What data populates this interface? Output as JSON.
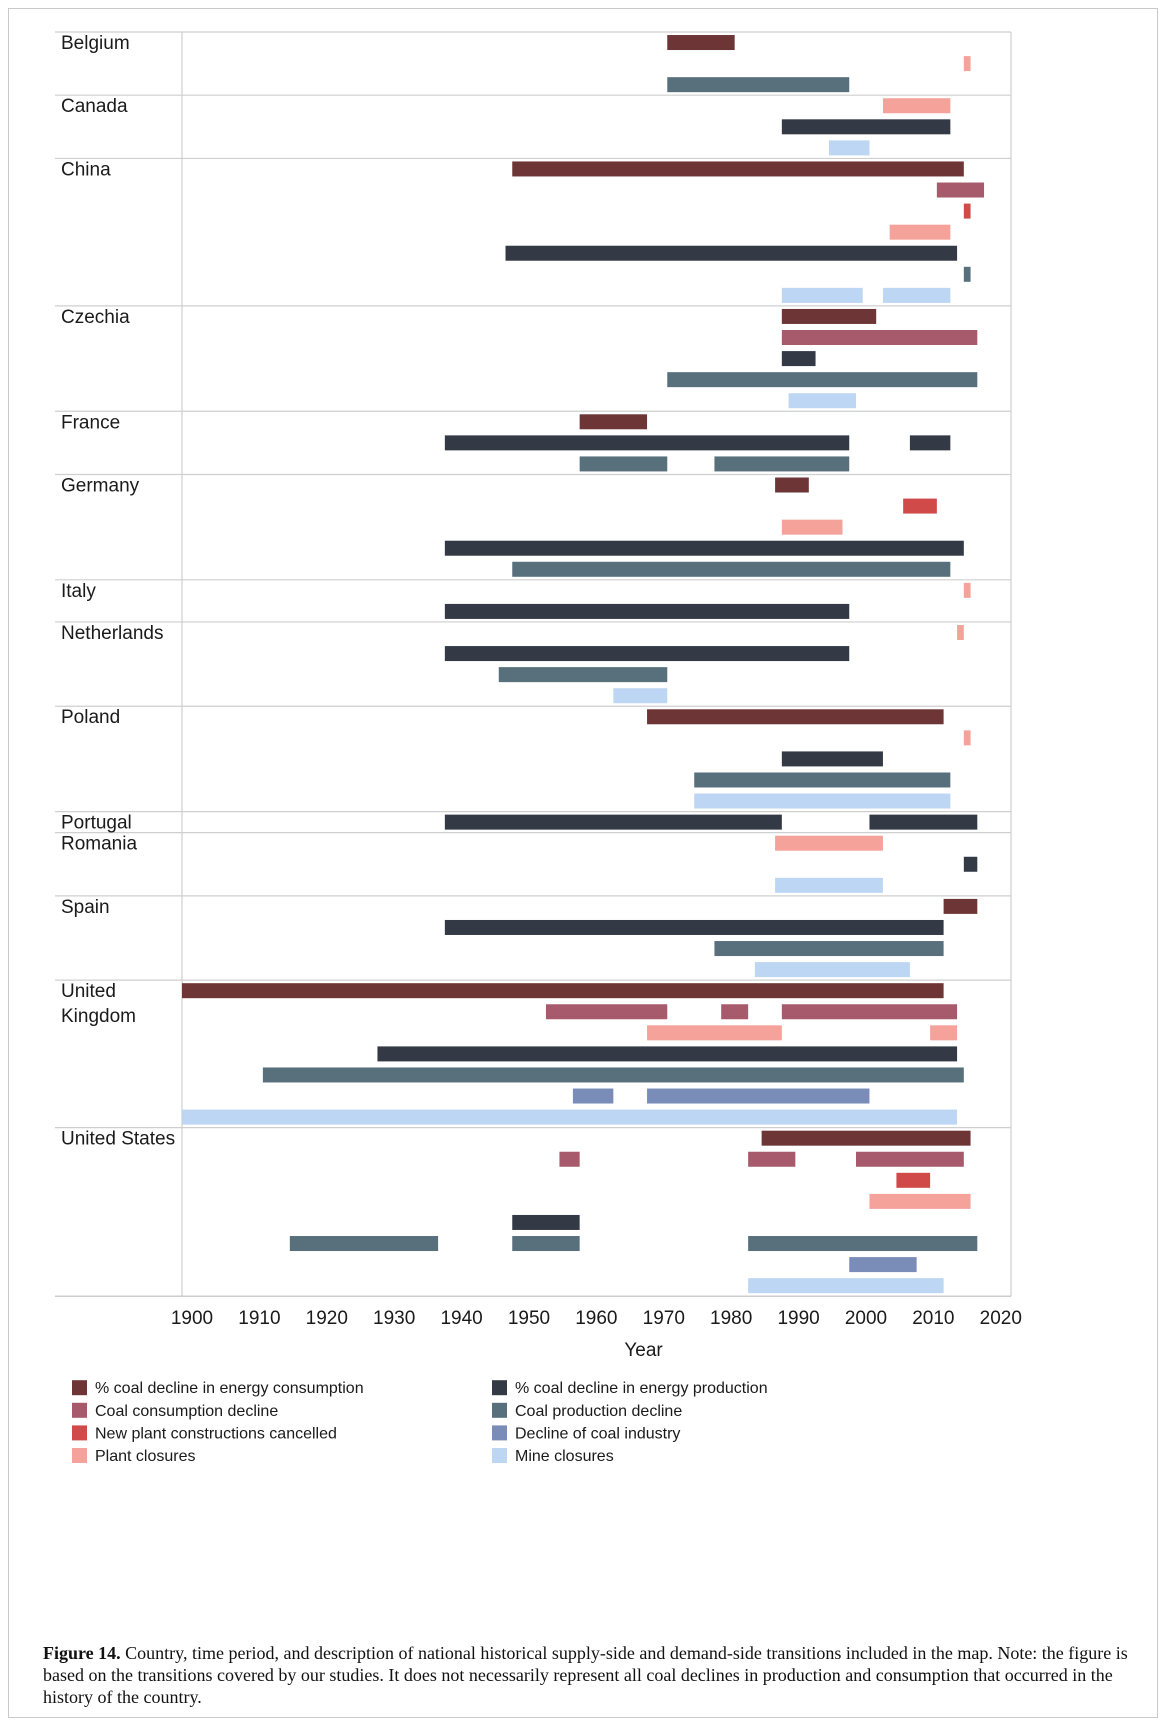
{
  "chart_data": {
    "type": "gantt",
    "xlabel": "Year",
    "xlim": [
      1900,
      2023
    ],
    "xticks": [
      1900,
      1910,
      1920,
      1930,
      1940,
      1950,
      1960,
      1970,
      1980,
      1990,
      2000,
      2010,
      2020
    ],
    "categories": [
      {
        "id": "pct_consumption",
        "label": "% coal decline in energy consumption",
        "color": "#6e3537"
      },
      {
        "id": "consumption",
        "label": "Coal consumption decline",
        "color": "#a65a6b"
      },
      {
        "id": "cancelled",
        "label": "New plant constructions cancelled",
        "color": "#d14a4a"
      },
      {
        "id": "plant_closures",
        "label": "Plant closures",
        "color": "#f5a29a"
      },
      {
        "id": "pct_production",
        "label": "% coal decline in energy production",
        "color": "#333a46"
      },
      {
        "id": "production",
        "label": "Coal production decline",
        "color": "#57707c"
      },
      {
        "id": "industry",
        "label": "Decline of coal industry",
        "color": "#7a8db8"
      },
      {
        "id": "mine_closures",
        "label": "Mine closures",
        "color": "#bcd6f3"
      }
    ],
    "countries": [
      {
        "name": "Belgium",
        "rows": 3,
        "bars": [
          {
            "row": 0,
            "cat": "pct_consumption",
            "start": 1972,
            "end": 1982
          },
          {
            "row": 1,
            "cat": "plant_closures",
            "start": 2016,
            "end": 2017
          },
          {
            "row": 2,
            "cat": "production",
            "start": 1972,
            "end": 1999
          }
        ]
      },
      {
        "name": "Canada",
        "rows": 3,
        "bars": [
          {
            "row": 0,
            "cat": "plant_closures",
            "start": 2004,
            "end": 2014
          },
          {
            "row": 1,
            "cat": "pct_production",
            "start": 1989,
            "end": 2014
          },
          {
            "row": 2,
            "cat": "mine_closures",
            "start": 1996,
            "end": 2002
          }
        ]
      },
      {
        "name": "China",
        "rows": 7,
        "bars": [
          {
            "row": 0,
            "cat": "pct_consumption",
            "start": 1949,
            "end": 2016
          },
          {
            "row": 1,
            "cat": "consumption",
            "start": 2012,
            "end": 2019
          },
          {
            "row": 2,
            "cat": "cancelled",
            "start": 2016,
            "end": 2017
          },
          {
            "row": 3,
            "cat": "plant_closures",
            "start": 2005,
            "end": 2014
          },
          {
            "row": 4,
            "cat": "pct_production",
            "start": 1948,
            "end": 2015
          },
          {
            "row": 5,
            "cat": "production",
            "start": 2016,
            "end": 2017
          },
          {
            "row": 6,
            "cat": "mine_closures",
            "start": 1989,
            "end": 2001
          },
          {
            "row": 6,
            "cat": "mine_closures",
            "start": 2004,
            "end": 2014
          }
        ]
      },
      {
        "name": "Czechia",
        "rows": 5,
        "bars": [
          {
            "row": 0,
            "cat": "pct_consumption",
            "start": 1989,
            "end": 2003
          },
          {
            "row": 1,
            "cat": "consumption",
            "start": 1989,
            "end": 2018
          },
          {
            "row": 2,
            "cat": "pct_production",
            "start": 1989,
            "end": 1994
          },
          {
            "row": 3,
            "cat": "production",
            "start": 1972,
            "end": 2018
          },
          {
            "row": 4,
            "cat": "mine_closures",
            "start": 1990,
            "end": 2000
          }
        ]
      },
      {
        "name": "France",
        "rows": 3,
        "bars": [
          {
            "row": 0,
            "cat": "pct_consumption",
            "start": 1959,
            "end": 1969
          },
          {
            "row": 1,
            "cat": "pct_production",
            "start": 1939,
            "end": 1999
          },
          {
            "row": 1,
            "cat": "pct_production",
            "start": 2008,
            "end": 2014
          },
          {
            "row": 2,
            "cat": "production",
            "start": 1959,
            "end": 1972
          },
          {
            "row": 2,
            "cat": "production",
            "start": 1979,
            "end": 1999
          }
        ]
      },
      {
        "name": "Germany",
        "rows": 5,
        "bars": [
          {
            "row": 0,
            "cat": "pct_consumption",
            "start": 1988,
            "end": 1993
          },
          {
            "row": 1,
            "cat": "cancelled",
            "start": 2007,
            "end": 2012
          },
          {
            "row": 2,
            "cat": "plant_closures",
            "start": 1989,
            "end": 1998
          },
          {
            "row": 3,
            "cat": "pct_production",
            "start": 1939,
            "end": 2016
          },
          {
            "row": 4,
            "cat": "production",
            "start": 1949,
            "end": 2014
          }
        ]
      },
      {
        "name": "Italy",
        "rows": 2,
        "bars": [
          {
            "row": 0,
            "cat": "plant_closures",
            "start": 2016,
            "end": 2017
          },
          {
            "row": 1,
            "cat": "pct_production",
            "start": 1939,
            "end": 1999
          }
        ]
      },
      {
        "name": "Netherlands",
        "rows": 4,
        "bars": [
          {
            "row": 0,
            "cat": "plant_closures",
            "start": 2015,
            "end": 2016
          },
          {
            "row": 1,
            "cat": "pct_production",
            "start": 1939,
            "end": 1999
          },
          {
            "row": 2,
            "cat": "production",
            "start": 1947,
            "end": 1972
          },
          {
            "row": 3,
            "cat": "mine_closures",
            "start": 1964,
            "end": 1972
          }
        ]
      },
      {
        "name": "Poland",
        "rows": 5,
        "bars": [
          {
            "row": 0,
            "cat": "pct_consumption",
            "start": 1969,
            "end": 2013
          },
          {
            "row": 1,
            "cat": "plant_closures",
            "start": 2016,
            "end": 2017
          },
          {
            "row": 2,
            "cat": "pct_production",
            "start": 1989,
            "end": 2004
          },
          {
            "row": 3,
            "cat": "production",
            "start": 1976,
            "end": 2014
          },
          {
            "row": 4,
            "cat": "mine_closures",
            "start": 1976,
            "end": 2014
          }
        ]
      },
      {
        "name": "Portugal",
        "rows": 1,
        "bars": [
          {
            "row": 0,
            "cat": "pct_production",
            "start": 1939,
            "end": 1989
          },
          {
            "row": 0,
            "cat": "pct_production",
            "start": 2002,
            "end": 2018
          }
        ]
      },
      {
        "name": "Romania",
        "rows": 3,
        "bars": [
          {
            "row": 0,
            "cat": "plant_closures",
            "start": 1988,
            "end": 2004
          },
          {
            "row": 1,
            "cat": "pct_production",
            "start": 2016,
            "end": 2018
          },
          {
            "row": 2,
            "cat": "mine_closures",
            "start": 1988,
            "end": 2004
          }
        ]
      },
      {
        "name": "Spain",
        "rows": 4,
        "bars": [
          {
            "row": 0,
            "cat": "pct_consumption",
            "start": 2013,
            "end": 2018
          },
          {
            "row": 1,
            "cat": "pct_production",
            "start": 1939,
            "end": 2013
          },
          {
            "row": 2,
            "cat": "production",
            "start": 1979,
            "end": 2013
          },
          {
            "row": 3,
            "cat": "mine_closures",
            "start": 1985,
            "end": 2008
          }
        ]
      },
      {
        "name": "United Kingdom",
        "rows": 7,
        "bars": [
          {
            "row": 0,
            "cat": "pct_consumption",
            "start": 1900,
            "end": 2013
          },
          {
            "row": 1,
            "cat": "consumption",
            "start": 1954,
            "end": 1972
          },
          {
            "row": 1,
            "cat": "consumption",
            "start": 1980,
            "end": 1984
          },
          {
            "row": 1,
            "cat": "consumption",
            "start": 1989,
            "end": 2015
          },
          {
            "row": 2,
            "cat": "plant_closures",
            "start": 1969,
            "end": 1989
          },
          {
            "row": 2,
            "cat": "plant_closures",
            "start": 2011,
            "end": 2015
          },
          {
            "row": 3,
            "cat": "pct_production",
            "start": 1929,
            "end": 2015
          },
          {
            "row": 4,
            "cat": "production",
            "start": 1912,
            "end": 2016
          },
          {
            "row": 5,
            "cat": "industry",
            "start": 1958,
            "end": 1964
          },
          {
            "row": 5,
            "cat": "industry",
            "start": 1969,
            "end": 2002
          },
          {
            "row": 6,
            "cat": "mine_closures",
            "start": 1900,
            "end": 2015
          }
        ]
      },
      {
        "name": "United States",
        "rows": 8,
        "bars": [
          {
            "row": 0,
            "cat": "pct_consumption",
            "start": 1986,
            "end": 2017
          },
          {
            "row": 1,
            "cat": "consumption",
            "start": 1956,
            "end": 1959
          },
          {
            "row": 1,
            "cat": "consumption",
            "start": 1984,
            "end": 1991
          },
          {
            "row": 1,
            "cat": "consumption",
            "start": 2000,
            "end": 2016
          },
          {
            "row": 2,
            "cat": "cancelled",
            "start": 2006,
            "end": 2011
          },
          {
            "row": 3,
            "cat": "plant_closures",
            "start": 2002,
            "end": 2017
          },
          {
            "row": 4,
            "cat": "pct_production",
            "start": 1949,
            "end": 1959
          },
          {
            "row": 5,
            "cat": "production",
            "start": 1916,
            "end": 1938
          },
          {
            "row": 5,
            "cat": "production",
            "start": 1949,
            "end": 1959
          },
          {
            "row": 5,
            "cat": "production",
            "start": 1984,
            "end": 2018
          },
          {
            "row": 6,
            "cat": "industry",
            "start": 1999,
            "end": 2009
          },
          {
            "row": 7,
            "cat": "mine_closures",
            "start": 1984,
            "end": 2013
          }
        ]
      }
    ]
  },
  "caption": {
    "label": "Figure 14.",
    "text": " Country, time period, and description of national historical supply-side and demand-side transitions included in the map. Note: the figure is based on the transitions covered by our studies. It does not necessarily represent all coal declines in production and consumption that occurred in the history of the country."
  }
}
